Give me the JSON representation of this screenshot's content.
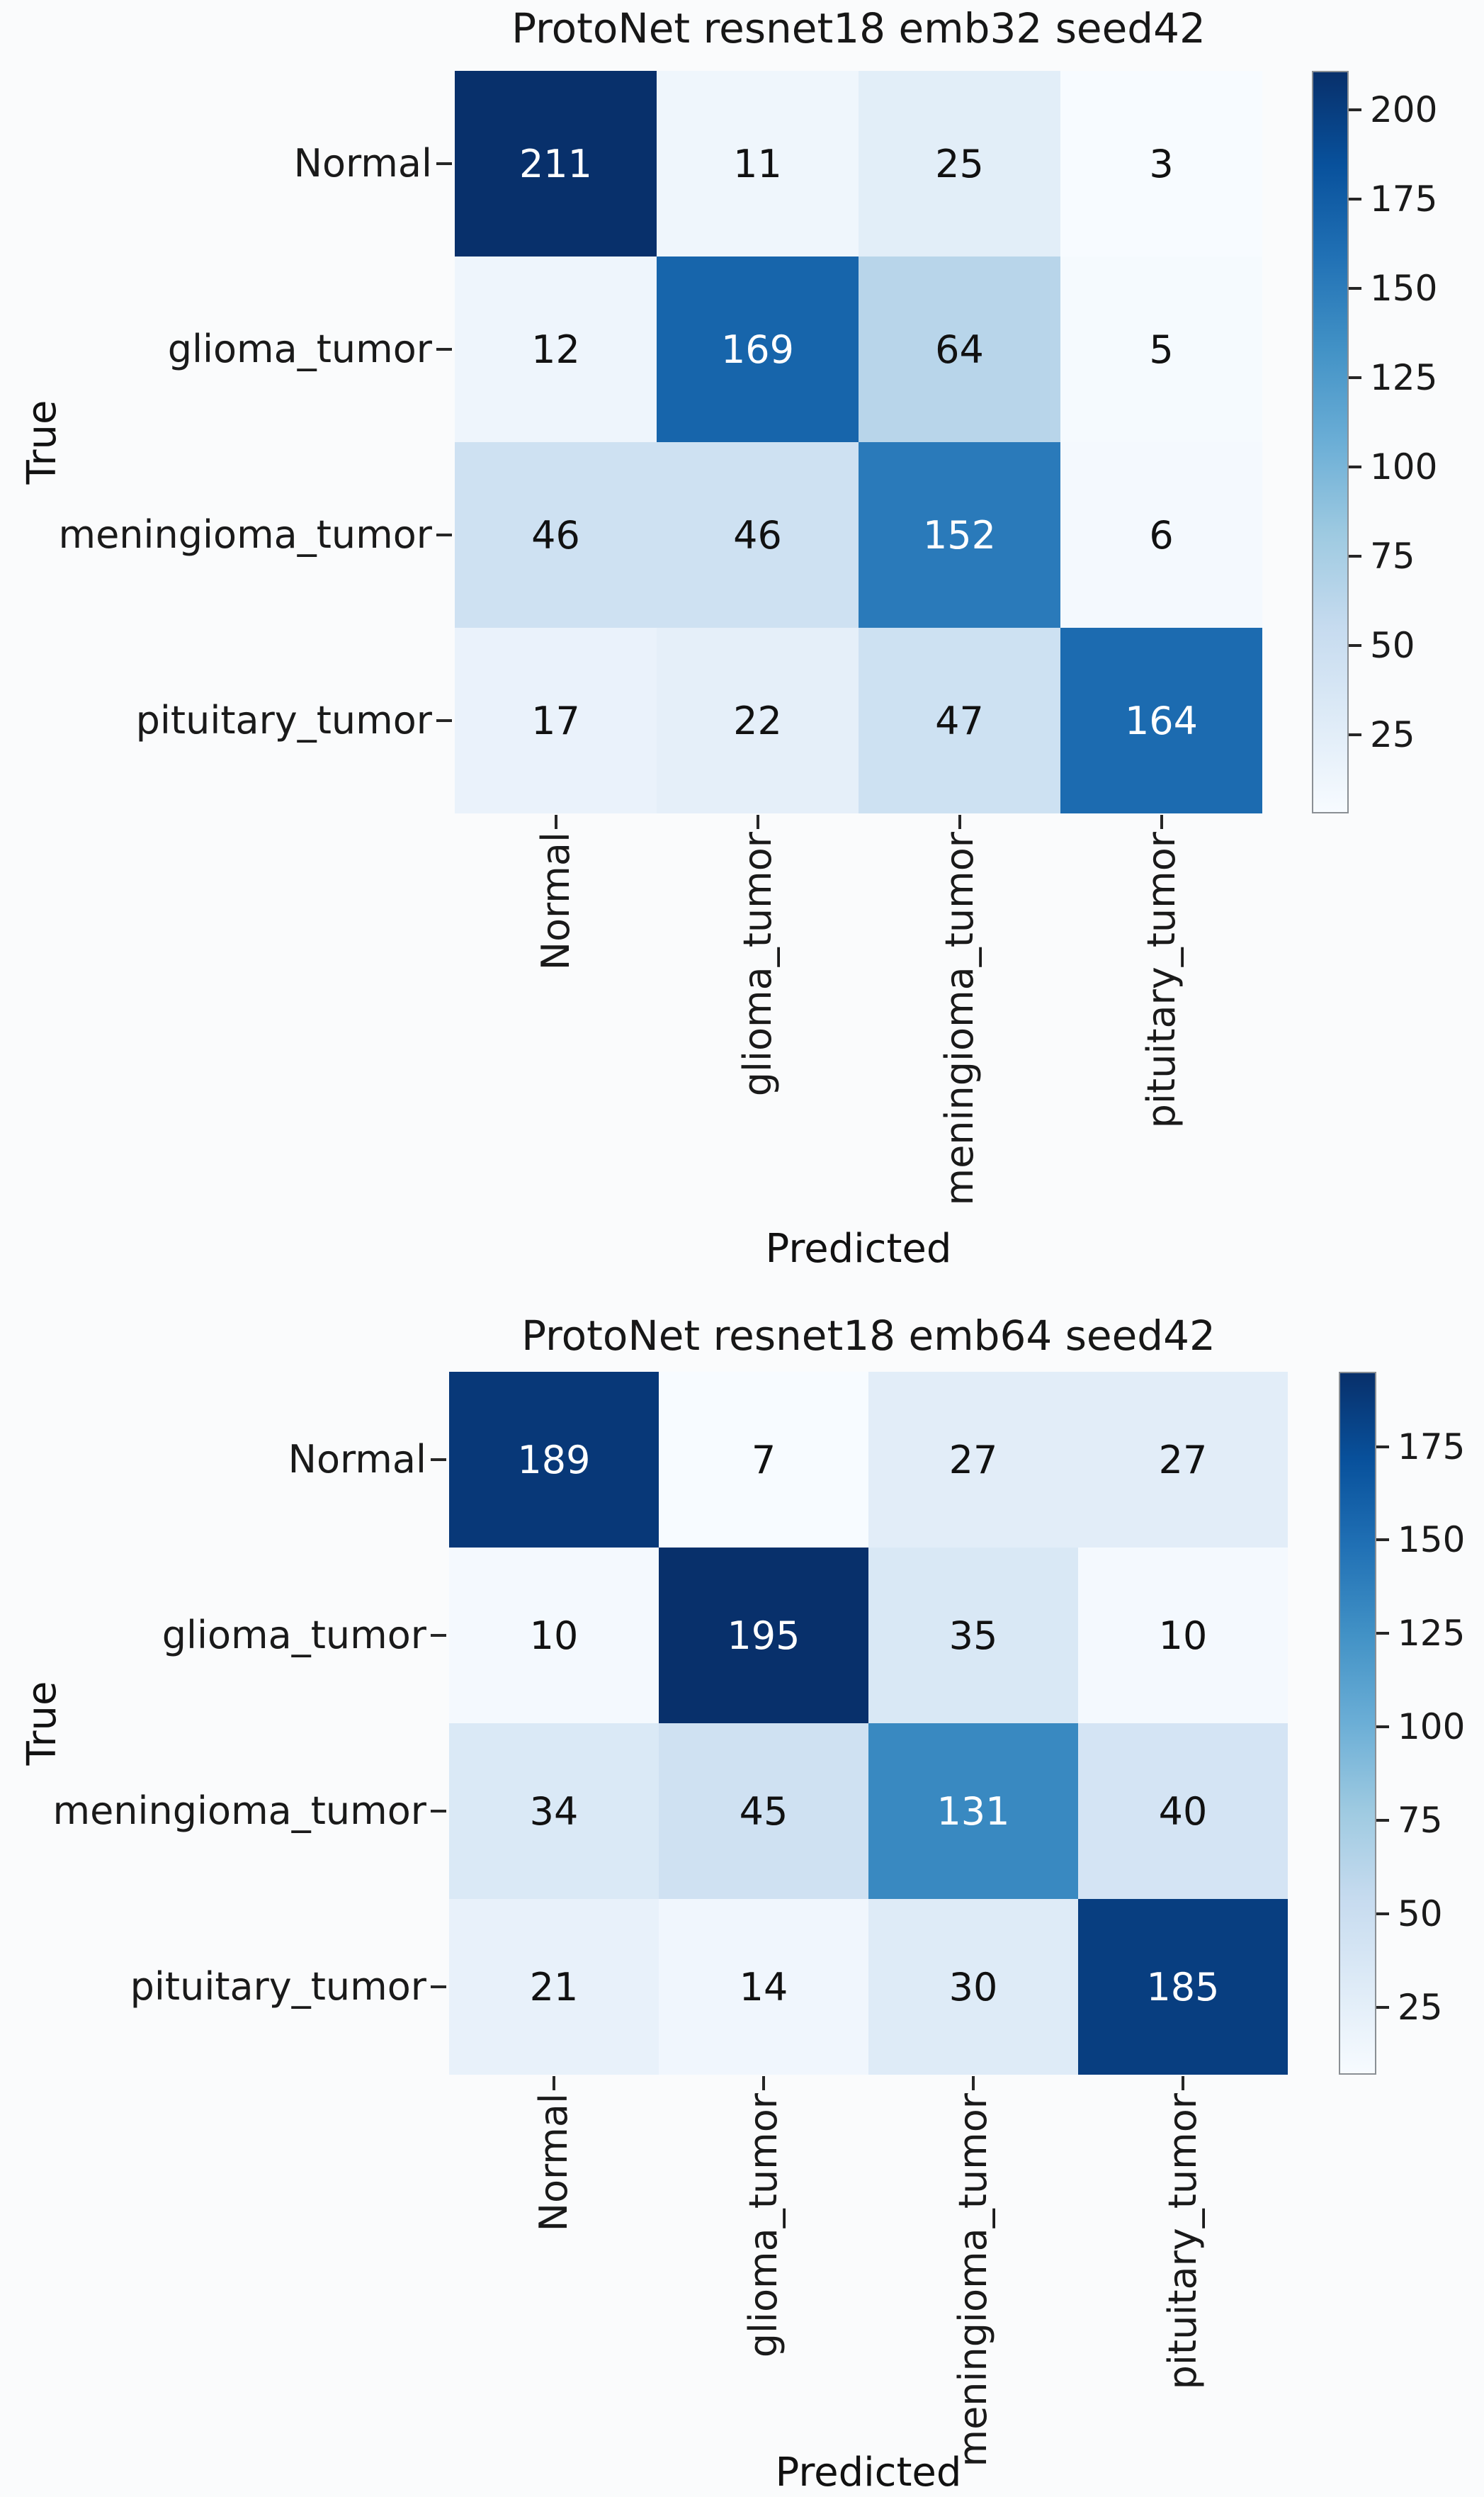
{
  "page": {
    "background": "#fafbfc",
    "text_color": "#1a1a1a"
  },
  "blues_gradient": [
    "#f7fbff",
    "#deebf7",
    "#c6dbef",
    "#9ecae1",
    "#6baed6",
    "#4292c6",
    "#2171b5",
    "#08519c",
    "#08306b"
  ],
  "chart_data": [
    {
      "type": "heatmap",
      "title": "ProtoNet resnet18 emb32 seed42",
      "xlabel": "Predicted",
      "ylabel": "True",
      "categories": [
        "Normal",
        "glioma_tumor",
        "meningioma_tumor",
        "pituitary_tumor"
      ],
      "matrix": [
        [
          211,
          11,
          25,
          3
        ],
        [
          12,
          169,
          64,
          5
        ],
        [
          46,
          46,
          152,
          6
        ],
        [
          17,
          22,
          47,
          164
        ]
      ],
      "colormap": "Blues",
      "vmin": 3,
      "vmax": 211,
      "colorbar_ticks": [
        200,
        175,
        150,
        125,
        100,
        75,
        50,
        25
      ],
      "legend_position": "right",
      "cell_colors": [
        [
          "#08306b",
          "#eff6fc",
          "#e2eef8",
          "#f7fbff"
        ],
        [
          "#eef5fc",
          "#1765ab",
          "#b8d5ea",
          "#f5fafe"
        ],
        [
          "#cee1f2",
          "#cee1f2",
          "#2a7aba",
          "#f4f9fe"
        ],
        [
          "#eaf2fb",
          "#e5eff9",
          "#cde1f2",
          "#1c6bb0"
        ]
      ],
      "cell_text_colors": [
        [
          "#ffffff",
          "#111111",
          "#111111",
          "#111111"
        ],
        [
          "#111111",
          "#ffffff",
          "#111111",
          "#111111"
        ],
        [
          "#111111",
          "#111111",
          "#ffffff",
          "#111111"
        ],
        [
          "#111111",
          "#111111",
          "#111111",
          "#ffffff"
        ]
      ]
    },
    {
      "type": "heatmap",
      "title": "ProtoNet resnet18 emb64 seed42",
      "xlabel": "Predicted",
      "ylabel": "True",
      "categories": [
        "Normal",
        "glioma_tumor",
        "meningioma_tumor",
        "pituitary_tumor"
      ],
      "matrix": [
        [
          189,
          7,
          27,
          27
        ],
        [
          10,
          195,
          35,
          10
        ],
        [
          34,
          45,
          131,
          40
        ],
        [
          21,
          14,
          30,
          185
        ]
      ],
      "colormap": "Blues",
      "vmin": 7,
      "vmax": 195,
      "colorbar_ticks": [
        175,
        150,
        125,
        100,
        75,
        50,
        25
      ],
      "legend_position": "right",
      "cell_colors": [
        [
          "#083878",
          "#f7fbff",
          "#e2edf8",
          "#e2edf8"
        ],
        [
          "#f4f9fe",
          "#08306b",
          "#d9e8f5",
          "#f4f9fe"
        ],
        [
          "#dae9f6",
          "#cfe1f2",
          "#3989c1",
          "#d4e4f4"
        ],
        [
          "#e8f1fa",
          "#f0f6fd",
          "#deebf7",
          "#083e80"
        ]
      ],
      "cell_text_colors": [
        [
          "#ffffff",
          "#111111",
          "#111111",
          "#111111"
        ],
        [
          "#111111",
          "#ffffff",
          "#111111",
          "#111111"
        ],
        [
          "#111111",
          "#111111",
          "#ffffff",
          "#111111"
        ],
        [
          "#111111",
          "#111111",
          "#111111",
          "#ffffff"
        ]
      ]
    }
  ]
}
